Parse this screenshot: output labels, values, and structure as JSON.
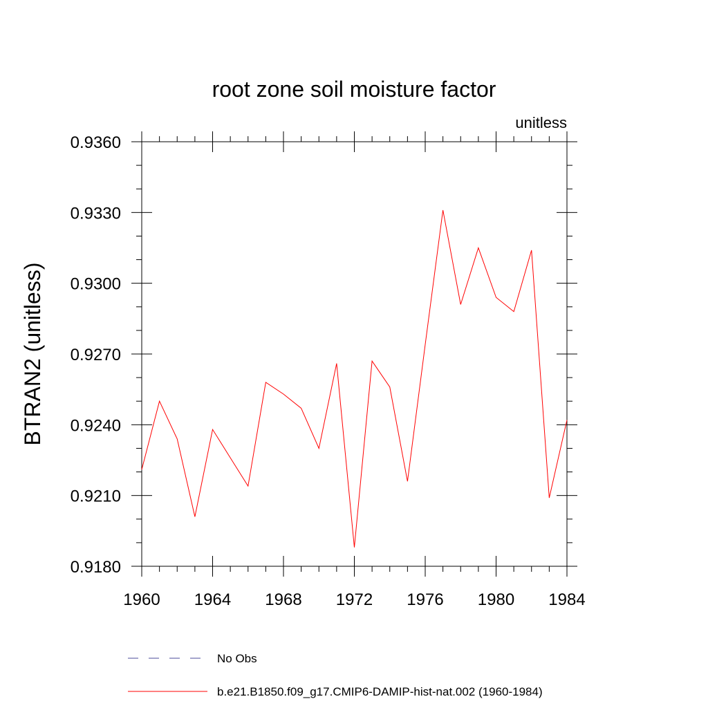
{
  "chart_data": {
    "type": "line",
    "title": "root zone soil moisture factor",
    "subtitle": "unitless",
    "xlabel": "",
    "ylabel": "BTRAN2  (unitless)",
    "xlim": [
      1960,
      1984
    ],
    "ylim": [
      0.918,
      0.936
    ],
    "x_ticks": [
      "1960",
      "1964",
      "1968",
      "1972",
      "1976",
      "1980",
      "1984"
    ],
    "y_ticks": [
      "0.9180",
      "0.9210",
      "0.9240",
      "0.9270",
      "0.9300",
      "0.9330",
      "0.9360"
    ],
    "grid": false,
    "legend_position": "bottom",
    "series": [
      {
        "name": "No Obs",
        "color": "#4a4a9a",
        "style": "dashed",
        "x": [],
        "values": []
      },
      {
        "name": "b.e21.B1850.f09_g17.CMIP6-DAMIP-hist-nat.002 (1960-1984)",
        "color": "#ff0000",
        "style": "solid",
        "x": [
          1960,
          1961,
          1962,
          1963,
          1964,
          1965,
          1966,
          1967,
          1968,
          1969,
          1970,
          1971,
          1972,
          1973,
          1974,
          1975,
          1976,
          1977,
          1978,
          1979,
          1980,
          1981,
          1982,
          1983,
          1984
        ],
        "values": [
          0.9221,
          0.925,
          0.9234,
          0.9201,
          0.9238,
          0.9226,
          0.9214,
          0.9258,
          0.9253,
          0.9247,
          0.923,
          0.9266,
          0.9188,
          0.9267,
          0.9256,
          0.9216,
          0.9274,
          0.9331,
          0.9291,
          0.9315,
          0.9294,
          0.9288,
          0.9314,
          0.9209,
          0.9242
        ]
      }
    ]
  }
}
